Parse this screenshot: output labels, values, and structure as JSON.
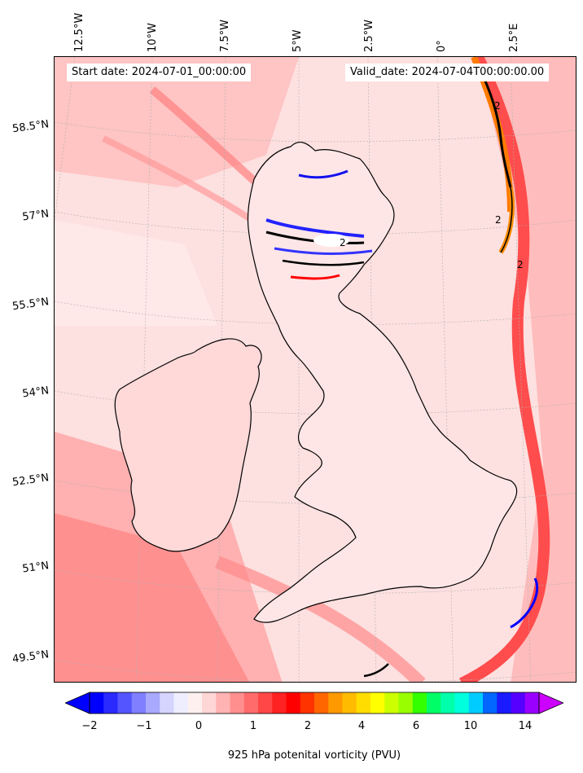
{
  "header": {
    "start_date": "Start date: 2024-07-01_00:00:00",
    "valid_date": "Valid_date: 2024-07-04T00:00:00.00"
  },
  "longitude_labels": [
    "12.5°W",
    "10°W",
    "7.5°W",
    "5°W",
    "2.5°W",
    "0°",
    "2.5°E"
  ],
  "latitude_labels": [
    "58.5°N",
    "57°N",
    "55.5°N",
    "54°N",
    "52.5°N",
    "51°N",
    "49.5°N"
  ],
  "contour_label": "2",
  "colorbar": {
    "label": "925 hPa potenital vorticity (PVU)",
    "ticks": [
      "−2",
      "−1",
      "0",
      "1",
      "2",
      "4",
      "6",
      "10",
      "14"
    ],
    "colors": [
      "#0000ff",
      "#2a2aff",
      "#5555ff",
      "#7f7fff",
      "#a9a9ff",
      "#d4d4ff",
      "#eeeeff",
      "#fff0f0",
      "#ffd6d6",
      "#ffb3b3",
      "#ff8f8f",
      "#ff6b6b",
      "#ff4747",
      "#ff2222",
      "#ff0000",
      "#ff3300",
      "#ff6600",
      "#ff9900",
      "#ffbb00",
      "#ffdd00",
      "#ffff00",
      "#ccff00",
      "#99ff00",
      "#33ff00",
      "#00ff66",
      "#00ffaa",
      "#00ffdd",
      "#00ccff",
      "#0066ff",
      "#1a1aff",
      "#5500ff",
      "#9900ff"
    ],
    "extend_low_color": "#0000ff",
    "extend_high_color": "#cc00ff"
  },
  "colors": {
    "land_outline": "#000000",
    "sea_background": "#fde6e6",
    "strong_red": "#ff5555",
    "mid_red": "#ff9b9b"
  }
}
